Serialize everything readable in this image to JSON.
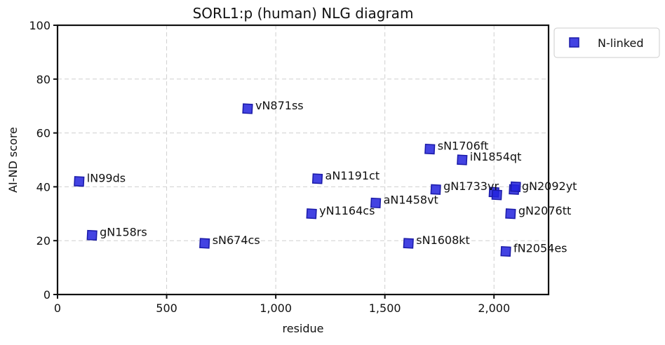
{
  "chart_data": {
    "type": "scatter",
    "title": "SORL1:p (human) NLG diagram",
    "xlabel": "residue",
    "ylabel": "AI-ND score",
    "xlim": [
      0,
      2250
    ],
    "ylim": [
      0,
      100
    ],
    "x_ticks": [
      0,
      500,
      1000,
      1500,
      2000
    ],
    "x_tick_labels": [
      "0",
      "500",
      "1,000",
      "1,500",
      "2,000"
    ],
    "y_ticks": [
      0,
      20,
      40,
      60,
      80,
      100
    ],
    "y_tick_labels": [
      "0",
      "20",
      "40",
      "60",
      "80",
      "100"
    ],
    "grid": true,
    "legend": {
      "placement": "outside-top-right",
      "entries": [
        "N-linked"
      ]
    },
    "series": [
      {
        "name": "N-linked",
        "color": "#2222dd",
        "marker": "square",
        "points": [
          {
            "x": 99,
            "y": 42,
            "label": "lN99ds"
          },
          {
            "x": 158,
            "y": 22,
            "label": "gN158rs"
          },
          {
            "x": 674,
            "y": 19,
            "label": "sN674cs"
          },
          {
            "x": 871,
            "y": 69,
            "label": "vN871ss"
          },
          {
            "x": 1164,
            "y": 30,
            "label": "yN1164cs"
          },
          {
            "x": 1191,
            "y": 43,
            "label": "aN1191ct"
          },
          {
            "x": 1458,
            "y": 34,
            "label": "aN1458vt"
          },
          {
            "x": 1608,
            "y": 19,
            "label": "sN1608kt"
          },
          {
            "x": 1706,
            "y": 54,
            "label": "sN1706ft"
          },
          {
            "x": 1733,
            "y": 39,
            "label": "gN1733vr"
          },
          {
            "x": 1854,
            "y": 50,
            "label": "iN1854qt"
          },
          {
            "x": 2000,
            "y": 38,
            "label": ""
          },
          {
            "x": 2013,
            "y": 37,
            "label": ""
          },
          {
            "x": 2054,
            "y": 16,
            "label": "fN2054es"
          },
          {
            "x": 2076,
            "y": 30,
            "label": "gN2076tt"
          },
          {
            "x": 2092,
            "y": 39,
            "label": "gN2092yt"
          },
          {
            "x": 2099,
            "y": 40,
            "label": ""
          }
        ]
      }
    ]
  }
}
